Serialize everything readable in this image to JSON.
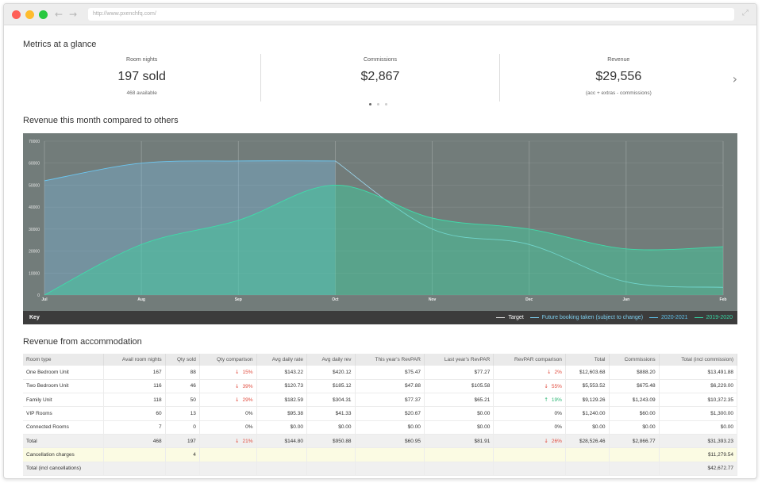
{
  "browser": {
    "url": "http://www.pxenchfq.com/"
  },
  "metrics": {
    "title": "Metrics at a glance",
    "cards": [
      {
        "label": "Room nights",
        "value": "197 sold",
        "sub": "468 available"
      },
      {
        "label": "Commissions",
        "value": "$2,867",
        "sub": ""
      },
      {
        "label": "Revenue",
        "value": "$29,556",
        "sub": "(acc + extras - commissions)"
      }
    ]
  },
  "chart_section": {
    "title": "Revenue this month compared to others",
    "key_label": "Key",
    "legend": [
      {
        "name": "Target",
        "color": "#dddddd"
      },
      {
        "name": "Future booking taken (subject to change)",
        "color": "#7fd0f0"
      },
      {
        "name": "2020-2021",
        "color": "#5fc0ea"
      },
      {
        "name": "2019-2020",
        "color": "#36d6a4"
      }
    ]
  },
  "chart_data": {
    "type": "area",
    "x": [
      "Jul",
      "Aug",
      "Sep",
      "Oct",
      "Nov",
      "Dec",
      "Jan",
      "Feb"
    ],
    "ylim": [
      0,
      70000
    ],
    "yticks": [
      "0",
      "10000",
      "20000",
      "30000",
      "40000",
      "50000",
      "60000",
      "70000"
    ],
    "series": [
      {
        "name": "2020-2021",
        "values": [
          52000,
          60000,
          61000,
          61000,
          null,
          null,
          null,
          null
        ]
      },
      {
        "name": "Future booking taken (subject to change)",
        "values": [
          null,
          null,
          null,
          61000,
          30000,
          23000,
          6000,
          3500
        ]
      },
      {
        "name": "2019-2020",
        "values": [
          0,
          23000,
          34000,
          50000,
          35000,
          30000,
          21000,
          22000
        ]
      }
    ]
  },
  "table": {
    "title": "Revenue from accommodation",
    "headers": [
      "Room type",
      "Avail room nights",
      "Qty sold",
      "Qty comparison",
      "Avg daily rate",
      "Avg daily rev",
      "This year's RevPAR",
      "Last year's RevPAR",
      "RevPAR comparison",
      "Total",
      "Commissions",
      "Total (incl commission)"
    ],
    "rows": [
      {
        "name": "One Bedroom Unit",
        "avail": "167",
        "sold": "88",
        "qty_dir": "down",
        "qty_cmp": "15%",
        "adr": "$143.22",
        "adrev": "$420.12",
        "revpar": "$75.47",
        "last_revpar": "$77.27",
        "rp_dir": "down",
        "rp_cmp": "2%",
        "total": "$12,603.68",
        "comm": "$888.20",
        "total_incl": "$13,491.88"
      },
      {
        "name": "Two Bedroom Unit",
        "avail": "116",
        "sold": "46",
        "qty_dir": "down",
        "qty_cmp": "39%",
        "adr": "$120.73",
        "adrev": "$185.12",
        "revpar": "$47.88",
        "last_revpar": "$105.58",
        "rp_dir": "down",
        "rp_cmp": "55%",
        "total": "$5,553.52",
        "comm": "$675.48",
        "total_incl": "$6,229.00"
      },
      {
        "name": "Family Unit",
        "avail": "118",
        "sold": "50",
        "qty_dir": "down",
        "qty_cmp": "29%",
        "adr": "$182.59",
        "adrev": "$304.31",
        "revpar": "$77.37",
        "last_revpar": "$65.21",
        "rp_dir": "up",
        "rp_cmp": "19%",
        "total": "$9,129.26",
        "comm": "$1,243.09",
        "total_incl": "$10,372.35"
      },
      {
        "name": "VIP Rooms",
        "avail": "60",
        "sold": "13",
        "qty_dir": "",
        "qty_cmp": "0%",
        "adr": "$95.38",
        "adrev": "$41.33",
        "revpar": "$20.67",
        "last_revpar": "$0.00",
        "rp_dir": "",
        "rp_cmp": "0%",
        "total": "$1,240.00",
        "comm": "$60.00",
        "total_incl": "$1,300.00"
      },
      {
        "name": "Connected Rooms",
        "avail": "7",
        "sold": "0",
        "qty_dir": "",
        "qty_cmp": "0%",
        "adr": "$0.00",
        "adrev": "$0.00",
        "revpar": "$0.00",
        "last_revpar": "$0.00",
        "rp_dir": "",
        "rp_cmp": "0%",
        "total": "$0.00",
        "comm": "$0.00",
        "total_incl": "$0.00"
      }
    ],
    "total_row": {
      "name": "Total",
      "avail": "468",
      "sold": "197",
      "qty_dir": "down",
      "qty_cmp": "21%",
      "adr": "$144.80",
      "adrev": "$950.88",
      "revpar": "$60.95",
      "last_revpar": "$81.91",
      "rp_dir": "down",
      "rp_cmp": "26%",
      "total": "$28,526.46",
      "comm": "$2,866.77",
      "total_incl": "$31,393.23"
    },
    "cancellation_row": {
      "name": "Cancellation charges",
      "sold": "4",
      "total_incl": "$11,279.54"
    },
    "grand_row": {
      "name": "Total (incl cancellations)",
      "total_incl": "$42,672.77"
    }
  }
}
